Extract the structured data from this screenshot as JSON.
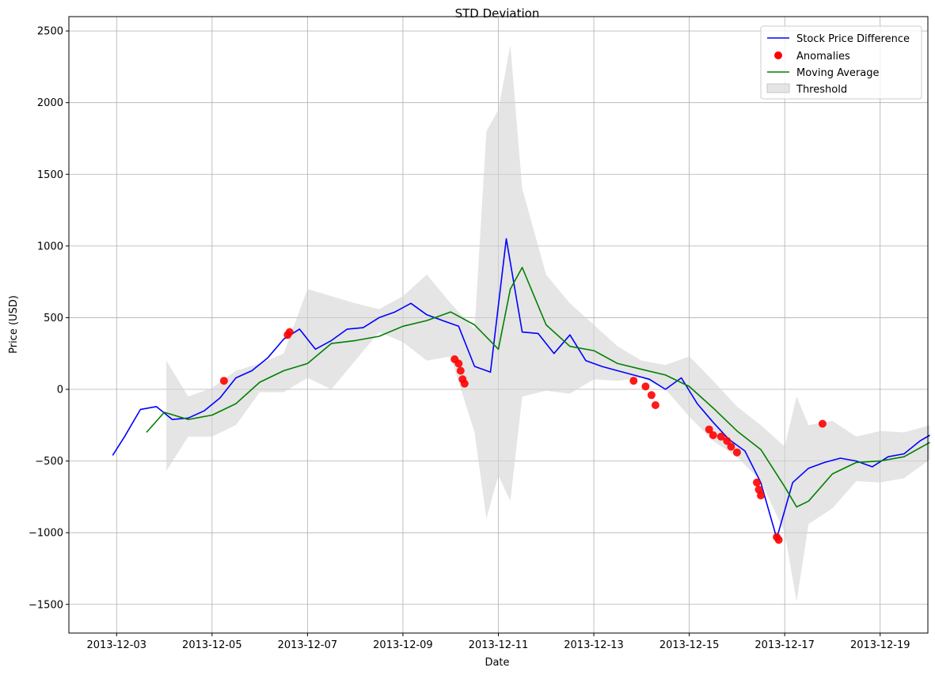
{
  "chart_data": {
    "type": "line",
    "title": "STD Deviation",
    "xlabel": "Date",
    "ylabel": "Price (USD)",
    "xlim": [
      "2013-12-02",
      "2013-12-20"
    ],
    "ylim": [
      -1700,
      2600
    ],
    "grid": true,
    "legend_position": "top-right",
    "x_ticks": [
      "2013-12-03",
      "2013-12-05",
      "2013-12-07",
      "2013-12-09",
      "2013-12-11",
      "2013-12-13",
      "2013-12-15",
      "2013-12-17",
      "2013-12-19"
    ],
    "y_ticks": [
      2500,
      2000,
      1500,
      1000,
      500,
      0,
      -500,
      -1000,
      -1500
    ],
    "y_tick_labels": [
      "2500",
      "2000",
      "1500",
      "1000",
      "500",
      "0",
      "−500",
      "−1000",
      "−1500"
    ],
    "colors": {
      "price": "#0000ff",
      "anomalies": "#ff0000",
      "moving_average": "#008000",
      "threshold": "#d3d3d3"
    },
    "series": [
      {
        "name": "Stock Price Difference",
        "kind": "line",
        "x": [
          "2013-12-02 22:00",
          "2013-12-03 04:00",
          "2013-12-03 12:00",
          "2013-12-03 20:00",
          "2013-12-04 04:00",
          "2013-12-04 12:00",
          "2013-12-04 20:00",
          "2013-12-05 04:00",
          "2013-12-05 12:00",
          "2013-12-05 20:00",
          "2013-12-06 04:00",
          "2013-12-06 12:00",
          "2013-12-06 20:00",
          "2013-12-07 04:00",
          "2013-12-07 12:00",
          "2013-12-07 20:00",
          "2013-12-08 04:00",
          "2013-12-08 12:00",
          "2013-12-08 20:00",
          "2013-12-09 04:00",
          "2013-12-09 12:00",
          "2013-12-09 20:00",
          "2013-12-10 04:00",
          "2013-12-10 12:00",
          "2013-12-10 20:00",
          "2013-12-11 04:00",
          "2013-12-11 12:00",
          "2013-12-11 20:00",
          "2013-12-12 04:00",
          "2013-12-12 12:00",
          "2013-12-12 20:00",
          "2013-12-13 04:00",
          "2013-12-13 12:00",
          "2013-12-13 20:00",
          "2013-12-14 04:00",
          "2013-12-14 12:00",
          "2013-12-14 20:00",
          "2013-12-15 04:00",
          "2013-12-15 12:00",
          "2013-12-15 20:00",
          "2013-12-16 04:00",
          "2013-12-16 12:00",
          "2013-12-16 20:00",
          "2013-12-17 04:00",
          "2013-12-17 12:00",
          "2013-12-17 20:00",
          "2013-12-18 04:00",
          "2013-12-18 12:00",
          "2013-12-18 20:00",
          "2013-12-19 04:00",
          "2013-12-19 12:00",
          "2013-12-19 20:00",
          "2013-12-20 01:00"
        ],
        "values": [
          -460,
          -330,
          -140,
          -120,
          -210,
          -200,
          -150,
          -60,
          80,
          130,
          220,
          350,
          420,
          280,
          340,
          420,
          430,
          500,
          540,
          600,
          520,
          480,
          440,
          160,
          120,
          1050,
          400,
          390,
          250,
          380,
          200,
          160,
          130,
          100,
          70,
          0,
          80,
          -100,
          -230,
          -350,
          -430,
          -650,
          -1040,
          -650,
          -550,
          -510,
          -480,
          -500,
          -540,
          -470,
          -450,
          -360,
          -320
        ]
      },
      {
        "name": "Moving Average",
        "kind": "line",
        "x": [
          "2013-12-03 15:00",
          "2013-12-04 00:00",
          "2013-12-04 12:00",
          "2013-12-05 00:00",
          "2013-12-05 12:00",
          "2013-12-06 00:00",
          "2013-12-06 12:00",
          "2013-12-07 00:00",
          "2013-12-07 12:00",
          "2013-12-08 00:00",
          "2013-12-08 12:00",
          "2013-12-09 00:00",
          "2013-12-09 12:00",
          "2013-12-10 00:00",
          "2013-12-10 12:00",
          "2013-12-11 00:00",
          "2013-12-11 06:00",
          "2013-12-11 12:00",
          "2013-12-12 00:00",
          "2013-12-12 12:00",
          "2013-12-13 00:00",
          "2013-12-13 12:00",
          "2013-12-14 00:00",
          "2013-12-14 12:00",
          "2013-12-15 00:00",
          "2013-12-15 12:00",
          "2013-12-16 00:00",
          "2013-12-16 12:00",
          "2013-12-17 00:00",
          "2013-12-17 06:00",
          "2013-12-17 12:00",
          "2013-12-18 00:00",
          "2013-12-18 12:00",
          "2013-12-19 00:00",
          "2013-12-19 12:00",
          "2013-12-20 01:00"
        ],
        "values": [
          -300,
          -160,
          -210,
          -180,
          -100,
          50,
          130,
          180,
          320,
          340,
          370,
          440,
          480,
          540,
          450,
          280,
          700,
          850,
          450,
          300,
          270,
          180,
          140,
          100,
          20,
          -130,
          -290,
          -420,
          -680,
          -820,
          -780,
          -590,
          -510,
          -500,
          -470,
          -370
        ]
      },
      {
        "name": "Threshold",
        "kind": "band",
        "x": [
          "2013-12-04 01:00",
          "2013-12-04 12:00",
          "2013-12-05 00:00",
          "2013-12-05 12:00",
          "2013-12-06 00:00",
          "2013-12-06 12:00",
          "2013-12-07 00:00",
          "2013-12-07 12:00",
          "2013-12-08 00:00",
          "2013-12-08 12:00",
          "2013-12-09 00:00",
          "2013-12-09 12:00",
          "2013-12-10 00:00",
          "2013-12-10 12:00",
          "2013-12-10 18:00",
          "2013-12-11 00:00",
          "2013-12-11 06:00",
          "2013-12-11 12:00",
          "2013-12-12 00:00",
          "2013-12-12 12:00",
          "2013-12-13 00:00",
          "2013-12-13 12:00",
          "2013-12-14 00:00",
          "2013-12-14 12:00",
          "2013-12-15 00:00",
          "2013-12-15 12:00",
          "2013-12-16 00:00",
          "2013-12-16 12:00",
          "2013-12-17 00:00",
          "2013-12-17 06:00",
          "2013-12-17 12:00",
          "2013-12-18 00:00",
          "2013-12-18 12:00",
          "2013-12-19 00:00",
          "2013-12-19 12:00",
          "2013-12-20 01:00"
        ],
        "upper": [
          200,
          -50,
          10,
          130,
          180,
          250,
          700,
          650,
          600,
          560,
          650,
          800,
          600,
          420,
          1800,
          1950,
          2400,
          1400,
          800,
          600,
          450,
          300,
          200,
          170,
          230,
          60,
          -120,
          -250,
          -400,
          -50,
          -250,
          -220,
          -330,
          -290,
          -300,
          -250
        ],
        "lower": [
          -570,
          -330,
          -330,
          -250,
          -20,
          -20,
          80,
          0,
          200,
          400,
          330,
          200,
          230,
          -300,
          -900,
          -600,
          -780,
          -50,
          -10,
          -30,
          70,
          60,
          80,
          0,
          -190,
          -360,
          -470,
          -640,
          -1000,
          -1480,
          -940,
          -830,
          -640,
          -650,
          -620,
          -490
        ]
      },
      {
        "name": "Anomalies",
        "kind": "scatter",
        "x": [
          "2013-12-05 06:00",
          "2013-12-06 14:00",
          "2013-12-06 15:00",
          "2013-12-10 02:00",
          "2013-12-10 04:00",
          "2013-12-10 05:00",
          "2013-12-10 06:00",
          "2013-12-10 07:00",
          "2013-12-13 20:00",
          "2013-12-14 02:00",
          "2013-12-14 05:00",
          "2013-12-14 07:00",
          "2013-12-15 10:00",
          "2013-12-15 12:00",
          "2013-12-15 16:00",
          "2013-12-15 19:00",
          "2013-12-15 21:00",
          "2013-12-16 00:00",
          "2013-12-16 10:00",
          "2013-12-16 11:00",
          "2013-12-16 12:00",
          "2013-12-16 20:00",
          "2013-12-16 21:00",
          "2013-12-17 19:00"
        ],
        "values": [
          60,
          380,
          400,
          210,
          180,
          130,
          70,
          40,
          60,
          20,
          -40,
          -110,
          -280,
          -320,
          -330,
          -360,
          -400,
          -440,
          -650,
          -700,
          -740,
          -1030,
          -1050,
          -240
        ]
      }
    ]
  },
  "legend": {
    "items": [
      {
        "label": "Stock Price Difference",
        "kind": "line",
        "color": "#0000ff"
      },
      {
        "label": "Anomalies",
        "kind": "dot",
        "color": "#ff0000"
      },
      {
        "label": "Moving Average",
        "kind": "line",
        "color": "#008000"
      },
      {
        "label": "Threshold",
        "kind": "patch",
        "color": "#d3d3d3"
      }
    ]
  }
}
